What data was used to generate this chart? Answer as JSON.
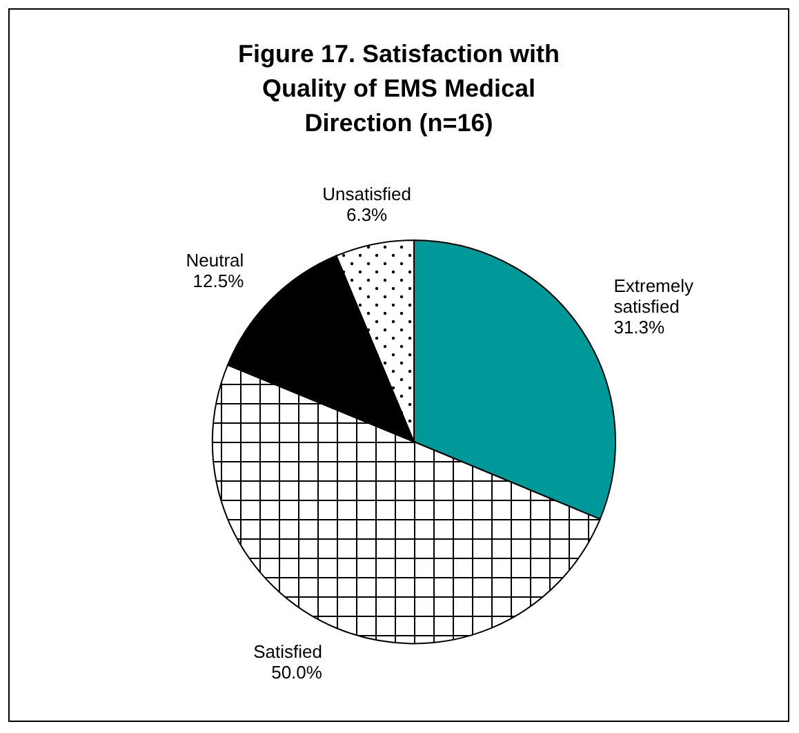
{
  "chart_data": {
    "type": "pie",
    "title": "Figure 17.  Satisfaction with Quality of EMS Medical Direction (n=16)",
    "categories": [
      "Extremely satisfied",
      "Satisfied",
      "Neutral",
      "Unsatisfied"
    ],
    "values": [
      31.3,
      50.0,
      12.5,
      6.3
    ],
    "value_labels": [
      "31.3%",
      "50.0%",
      "12.5%",
      "6.3%"
    ],
    "colors": [
      "#009999",
      "#ffffff",
      "#000000",
      "#ffffff"
    ]
  }
}
